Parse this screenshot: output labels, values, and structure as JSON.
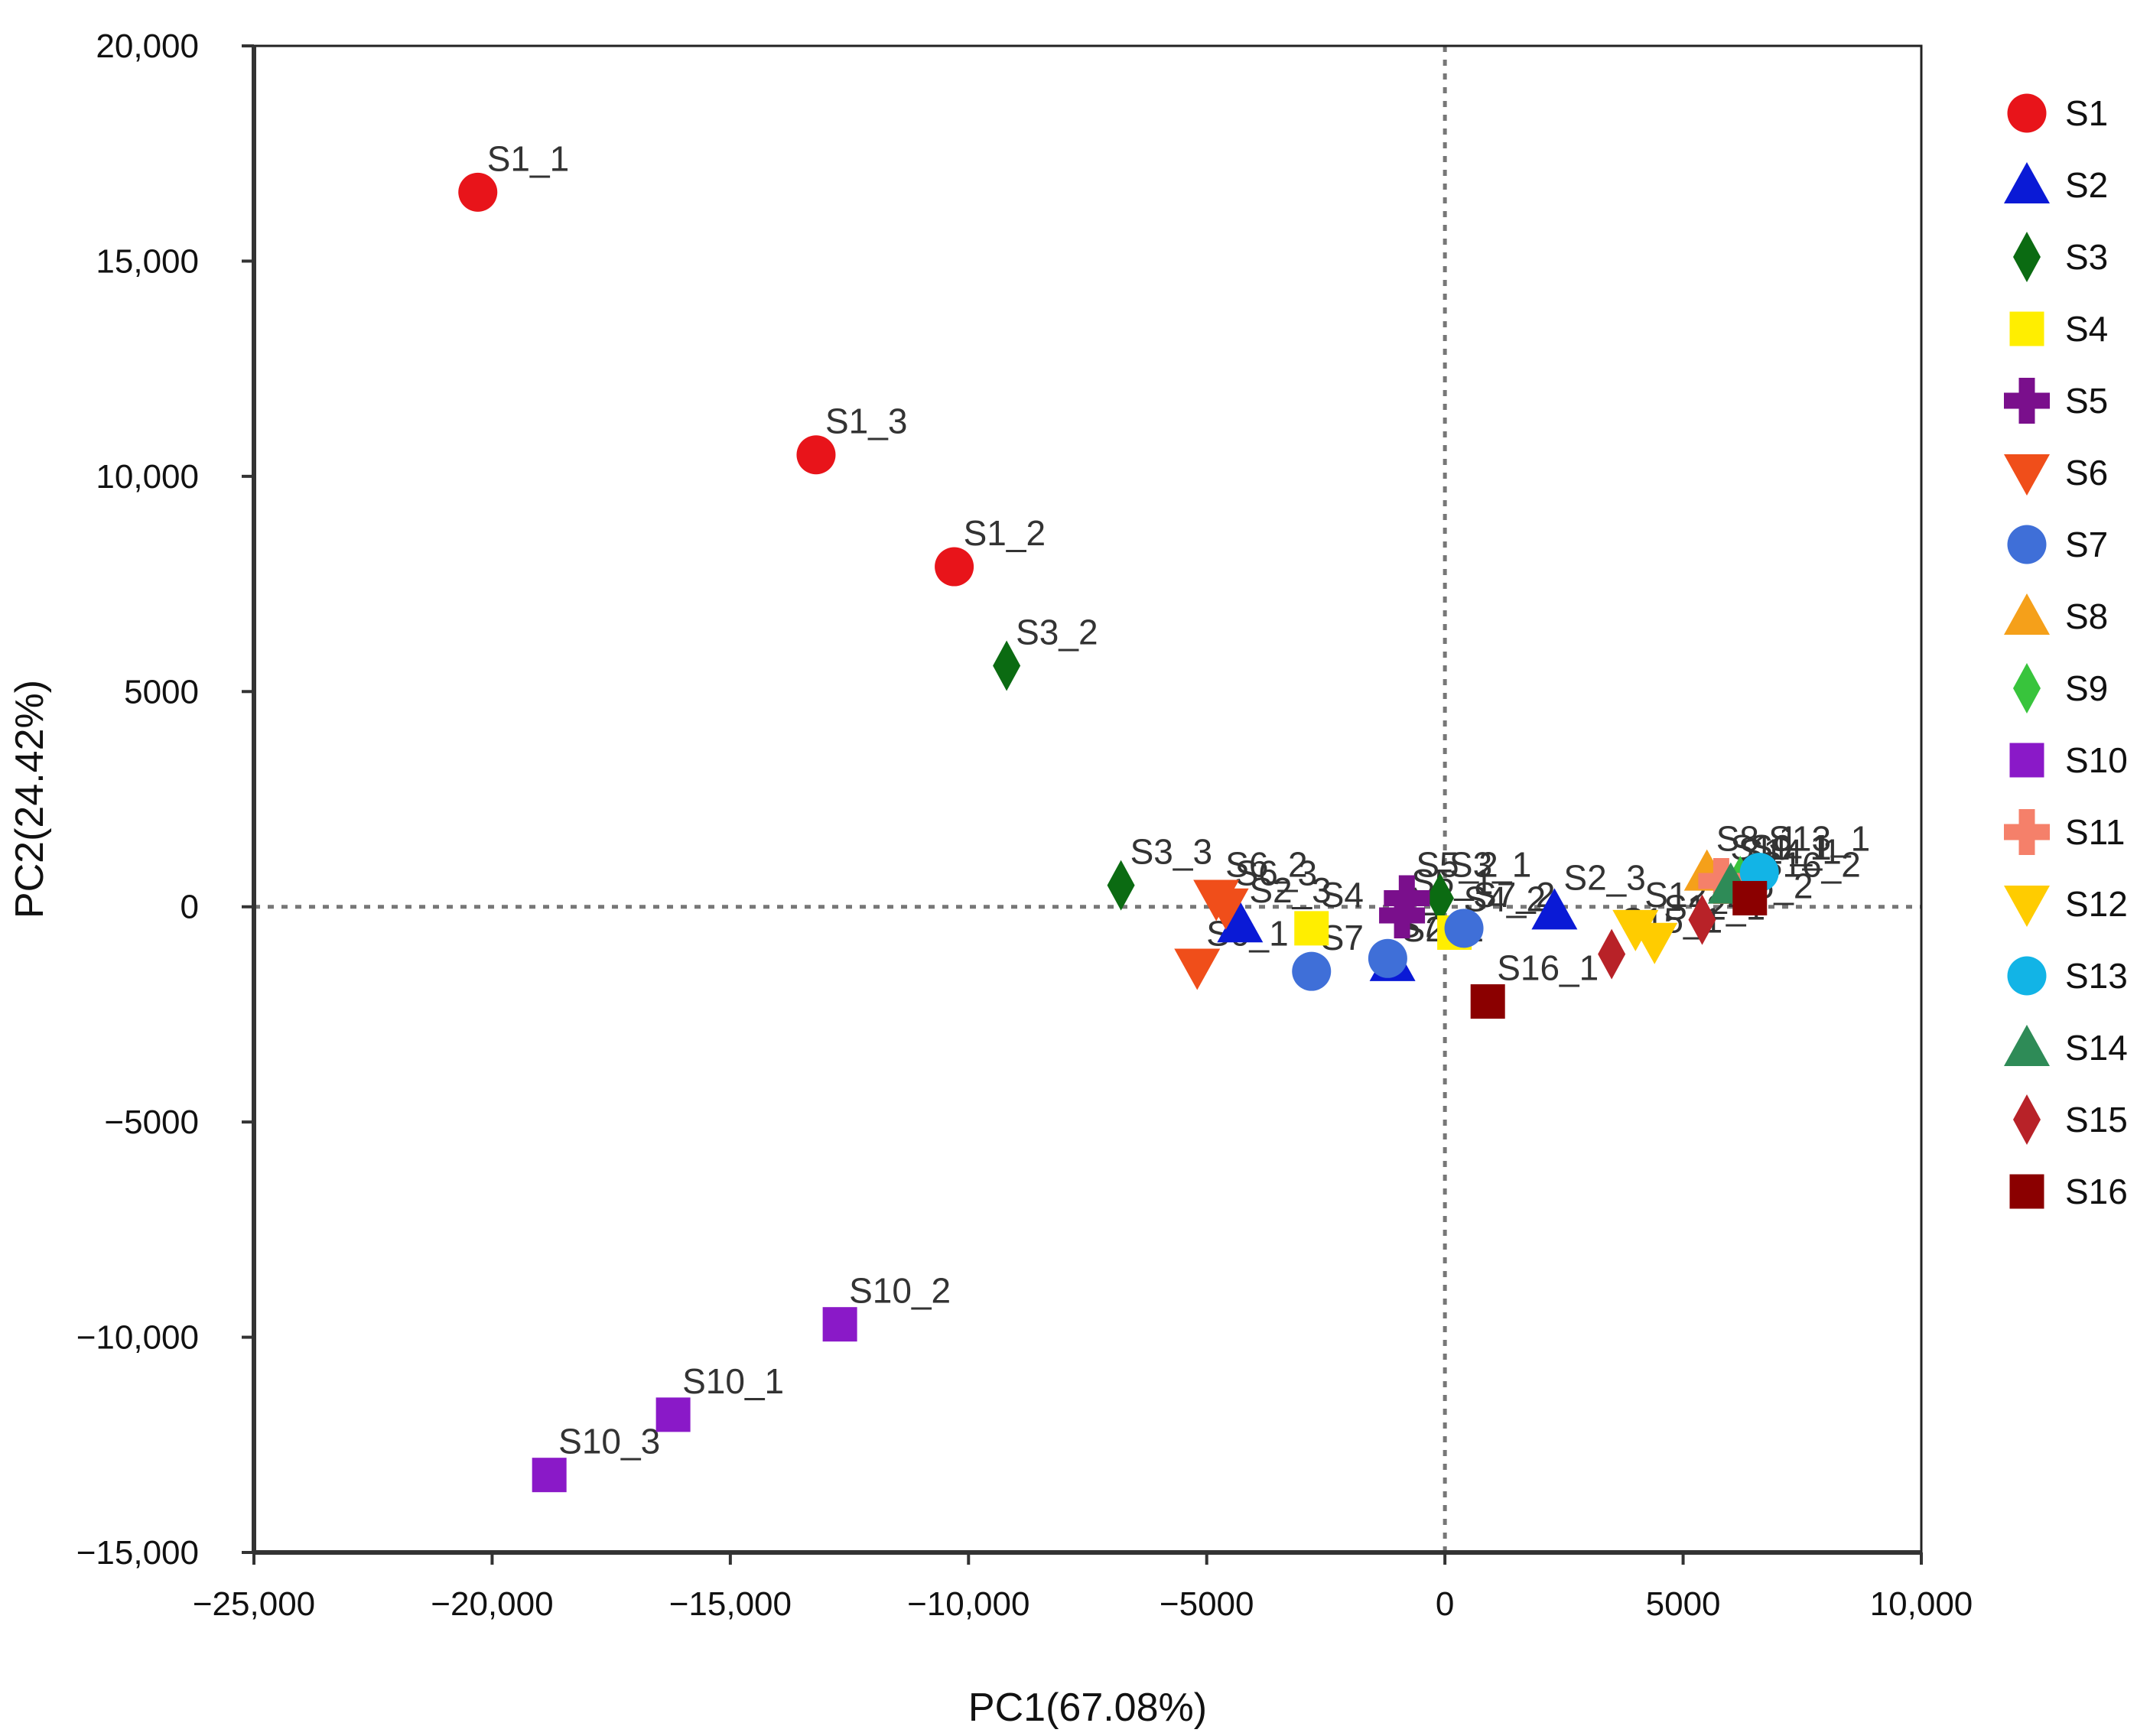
{
  "chart_data": {
    "type": "scatter",
    "title": "",
    "xlabel": "PC1(67.08%)",
    "ylabel": "PC2(24.42%)",
    "xlim": [
      -25000,
      10000
    ],
    "ylim": [
      -15000,
      20000
    ],
    "xticks": [
      -25000,
      -20000,
      -15000,
      -10000,
      -5000,
      0,
      5000,
      10000
    ],
    "xtick_labels": [
      "−25,000",
      "−20,000",
      "−15,000",
      "−10,000",
      "−5000",
      "0",
      "5000",
      "10,000"
    ],
    "yticks": [
      20000,
      15000,
      10000,
      5000,
      0,
      -5000,
      -10000,
      -15000
    ],
    "ytick_labels": [
      "20,000",
      "15,000",
      "10,000",
      "5000",
      "0",
      "−5000",
      "−10,000",
      "−15,000"
    ],
    "reference_lines": {
      "x": 0,
      "y": 0,
      "style": "dotted"
    },
    "legend_position": "right",
    "series": [
      {
        "name": "S1",
        "color": "#e8141a",
        "marker": "circle",
        "points": [
          {
            "x": -20300,
            "y": 16600,
            "label": "S1_1"
          },
          {
            "x": -13200,
            "y": 10500,
            "label": "S1_3"
          },
          {
            "x": -10300,
            "y": 7900,
            "label": "S1_2"
          }
        ]
      },
      {
        "name": "S2",
        "color": "#0a1ad6",
        "marker": "triangle",
        "points": [
          {
            "x": -4300,
            "y": -400,
            "label": "S2_3"
          },
          {
            "x": -1100,
            "y": -1300,
            "label": "S2_1"
          },
          {
            "x": 2300,
            "y": -100,
            "label": "S2_3"
          }
        ]
      },
      {
        "name": "S3",
        "color": "#0b6b12",
        "marker": "diamond",
        "points": [
          {
            "x": -9200,
            "y": 5600,
            "label": "S3_2"
          },
          {
            "x": -6800,
            "y": 500,
            "label": "S3_3"
          },
          {
            "x": -100,
            "y": 200,
            "label": "S3_1"
          }
        ]
      },
      {
        "name": "S4",
        "color": "#ffee00",
        "marker": "square",
        "points": [
          {
            "x": -2800,
            "y": -500,
            "label": "S4"
          },
          {
            "x": 200,
            "y": -600,
            "label": "S4_2"
          }
        ]
      },
      {
        "name": "S5",
        "color": "#7a0f8c",
        "marker": "plus",
        "points": [
          {
            "x": -800,
            "y": 200,
            "label": "S5_2"
          },
          {
            "x": -900,
            "y": -200,
            "label": "S5_1"
          }
        ]
      },
      {
        "name": "S6",
        "color": "#f04e1a",
        "marker": "triangle-down",
        "points": [
          {
            "x": -5200,
            "y": -1400,
            "label": "S6_1"
          },
          {
            "x": -4800,
            "y": 200,
            "label": "S6_2"
          },
          {
            "x": -4600,
            "y": 0,
            "label": "S6_3"
          }
        ]
      },
      {
        "name": "S7",
        "color": "#3f6fd8",
        "marker": "circle",
        "points": [
          {
            "x": -2800,
            "y": -1500,
            "label": "S7"
          },
          {
            "x": -1200,
            "y": -1200,
            "label": "S7_1"
          },
          {
            "x": 400,
            "y": -500,
            "label": "S7_2"
          }
        ]
      },
      {
        "name": "S8",
        "color": "#f5a01a",
        "marker": "triangle",
        "points": [
          {
            "x": 5500,
            "y": 800,
            "label": "S8_1"
          }
        ]
      },
      {
        "name": "S9",
        "color": "#38c43c",
        "marker": "diamond",
        "points": [
          {
            "x": 6200,
            "y": 600,
            "label": "S9_1"
          }
        ]
      },
      {
        "name": "S10",
        "color": "#8a19c8",
        "marker": "square",
        "points": [
          {
            "x": -12700,
            "y": -9700,
            "label": "S10_2"
          },
          {
            "x": -16200,
            "y": -11800,
            "label": "S10_1"
          },
          {
            "x": -18800,
            "y": -13200,
            "label": "S10_3"
          }
        ]
      },
      {
        "name": "S11",
        "color": "#f5806a",
        "marker": "plus",
        "points": [
          {
            "x": 5800,
            "y": 600,
            "label": "S11_1"
          }
        ]
      },
      {
        "name": "S12",
        "color": "#ffcc00",
        "marker": "triangle-down",
        "points": [
          {
            "x": 4400,
            "y": -800,
            "label": "S12_1"
          },
          {
            "x": 4000,
            "y": -500,
            "label": "S12_2"
          }
        ]
      },
      {
        "name": "S13",
        "color": "#12b4e6",
        "marker": "circle",
        "points": [
          {
            "x": 6600,
            "y": 800,
            "label": "S13_1"
          }
        ]
      },
      {
        "name": "S14",
        "color": "#2e8b57",
        "marker": "triangle",
        "points": [
          {
            "x": 6000,
            "y": 500,
            "label": "S14_1"
          }
        ]
      },
      {
        "name": "S15",
        "color": "#b82228",
        "marker": "diamond",
        "points": [
          {
            "x": 3500,
            "y": -1100,
            "label": "S15_1"
          },
          {
            "x": 5400,
            "y": -300,
            "label": "S15_2"
          }
        ]
      },
      {
        "name": "S16",
        "color": "#8b0000",
        "marker": "square",
        "points": [
          {
            "x": 900,
            "y": -2200,
            "label": "S16_1"
          },
          {
            "x": 6400,
            "y": 200,
            "label": "S16_2"
          }
        ]
      }
    ]
  }
}
